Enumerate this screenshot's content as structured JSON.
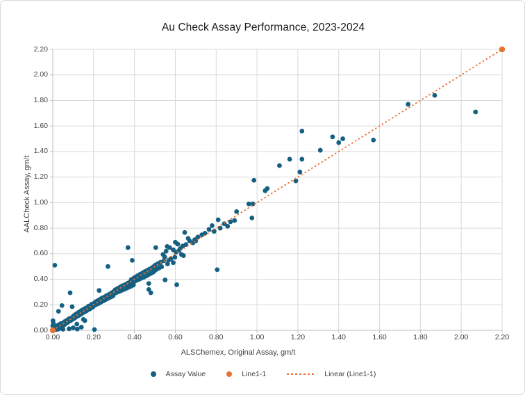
{
  "window": {
    "background": "#ffffff",
    "border_color": "#d9d9d9"
  },
  "chart_data": {
    "type": "scatter",
    "title": "Au Check Assay Performance, 2023-2024",
    "xlabel": "ALSChemex, Original Assay, gm/t",
    "ylabel": "AALCheck Assay, gm/t",
    "xlim": [
      0,
      2.2
    ],
    "ylim": [
      0,
      2.2
    ],
    "tick_step": 0.2,
    "grid": true,
    "gridline_color": "#d9d9d9",
    "axis_line_color": "#bfbfbf",
    "text_color": "#404040",
    "legend_position": "bottom-center",
    "x_ticks": [
      "0.00",
      "0.20",
      "0.40",
      "0.60",
      "0.80",
      "1.00",
      "1.20",
      "1.40",
      "1.60",
      "1.80",
      "2.00",
      "2.20"
    ],
    "y_ticks": [
      "0.00",
      "0.20",
      "0.40",
      "0.60",
      "0.80",
      "1.00",
      "1.20",
      "1.40",
      "1.60",
      "1.80",
      "2.00",
      "2.20"
    ],
    "series": [
      {
        "name": "Assay Value",
        "type": "scatter",
        "color": "#156082",
        "marker": "circle",
        "points": [
          [
            0.002,
            0.01
          ],
          [
            0.004,
            0.0
          ],
          [
            0.006,
            0.018
          ],
          [
            0.008,
            0.004
          ],
          [
            0.01,
            0.022
          ],
          [
            0.012,
            0.008
          ],
          [
            0.014,
            0.03
          ],
          [
            0.016,
            0.012
          ],
          [
            0.018,
            0.006
          ],
          [
            0.02,
            0.028
          ],
          [
            0.022,
            0.016
          ],
          [
            0.024,
            0.038
          ],
          [
            0.026,
            0.02
          ],
          [
            0.028,
            0.01
          ],
          [
            0.03,
            0.044
          ],
          [
            0.033,
            0.026
          ],
          [
            0.036,
            0.032
          ],
          [
            0.039,
            0.052
          ],
          [
            0.042,
            0.03
          ],
          [
            0.045,
            0.048
          ],
          [
            0.048,
            0.038
          ],
          [
            0.052,
            0.06
          ],
          [
            0.055,
            0.042
          ],
          [
            0.058,
            0.068
          ],
          [
            0.061,
            0.05
          ],
          [
            0.064,
            0.058
          ],
          [
            0.068,
            0.078
          ],
          [
            0.071,
            0.06
          ],
          [
            0.075,
            0.068
          ],
          [
            0.079,
            0.09
          ],
          [
            0.083,
            0.072
          ],
          [
            0.087,
            0.095
          ],
          [
            0.091,
            0.08
          ],
          [
            0.096,
            0.088
          ],
          [
            0.0,
            0.035
          ],
          [
            0.003,
            0.055
          ],
          [
            0.001,
            0.075
          ],
          [
            0.05,
            0.008
          ],
          [
            0.08,
            0.012
          ],
          [
            0.1,
            0.02
          ],
          [
            0.12,
            0.01
          ],
          [
            0.14,
            0.025
          ],
          [
            0.01,
            0.51
          ],
          [
            0.028,
            0.149
          ],
          [
            0.045,
            0.194
          ],
          [
            0.085,
            0.294
          ],
          [
            0.095,
            0.185
          ],
          [
            0.118,
            0.049
          ],
          [
            0.157,
            0.076
          ],
          [
            0.204,
            0.006
          ],
          [
            0.15,
            0.085
          ],
          [
            0.101,
            0.112
          ],
          [
            0.104,
            0.092
          ],
          [
            0.107,
            0.118
          ],
          [
            0.11,
            0.1
          ],
          [
            0.113,
            0.126
          ],
          [
            0.116,
            0.108
          ],
          [
            0.119,
            0.132
          ],
          [
            0.122,
            0.112
          ],
          [
            0.126,
            0.14
          ],
          [
            0.129,
            0.118
          ],
          [
            0.133,
            0.124
          ],
          [
            0.136,
            0.15
          ],
          [
            0.139,
            0.128
          ],
          [
            0.143,
            0.158
          ],
          [
            0.146,
            0.136
          ],
          [
            0.15,
            0.142
          ],
          [
            0.154,
            0.168
          ],
          [
            0.158,
            0.146
          ],
          [
            0.162,
            0.175
          ],
          [
            0.166,
            0.154
          ],
          [
            0.17,
            0.16
          ],
          [
            0.175,
            0.19
          ],
          [
            0.18,
            0.166
          ],
          [
            0.185,
            0.172
          ],
          [
            0.19,
            0.205
          ],
          [
            0.196,
            0.182
          ],
          [
            0.201,
            0.192
          ],
          [
            0.204,
            0.215
          ],
          [
            0.208,
            0.198
          ],
          [
            0.212,
            0.225
          ],
          [
            0.216,
            0.205
          ],
          [
            0.22,
            0.232
          ],
          [
            0.224,
            0.21
          ],
          [
            0.227,
            0.312
          ],
          [
            0.229,
            0.24
          ],
          [
            0.233,
            0.218
          ],
          [
            0.237,
            0.248
          ],
          [
            0.241,
            0.226
          ],
          [
            0.245,
            0.255
          ],
          [
            0.249,
            0.232
          ],
          [
            0.254,
            0.262
          ],
          [
            0.258,
            0.24
          ],
          [
            0.262,
            0.27
          ],
          [
            0.267,
            0.248
          ],
          [
            0.27,
            0.5
          ],
          [
            0.272,
            0.278
          ],
          [
            0.276,
            0.255
          ],
          [
            0.281,
            0.286
          ],
          [
            0.286,
            0.262
          ],
          [
            0.29,
            0.295
          ],
          [
            0.295,
            0.27
          ],
          [
            0.299,
            0.305
          ],
          [
            0.302,
            0.288
          ],
          [
            0.306,
            0.318
          ],
          [
            0.311,
            0.295
          ],
          [
            0.316,
            0.326
          ],
          [
            0.321,
            0.302
          ],
          [
            0.326,
            0.335
          ],
          [
            0.331,
            0.308
          ],
          [
            0.336,
            0.345
          ],
          [
            0.341,
            0.315
          ],
          [
            0.346,
            0.352
          ],
          [
            0.352,
            0.322
          ],
          [
            0.357,
            0.36
          ],
          [
            0.362,
            0.33
          ],
          [
            0.368,
            0.648
          ],
          [
            0.368,
            0.37
          ],
          [
            0.373,
            0.338
          ],
          [
            0.379,
            0.38
          ],
          [
            0.384,
            0.346
          ],
          [
            0.389,
            0.548
          ],
          [
            0.39,
            0.39
          ],
          [
            0.392,
            0.372
          ],
          [
            0.395,
            0.355
          ],
          [
            0.398,
            0.41
          ],
          [
            0.385,
            0.398
          ],
          [
            0.402,
            0.385
          ],
          [
            0.407,
            0.42
          ],
          [
            0.412,
            0.392
          ],
          [
            0.418,
            0.43
          ],
          [
            0.423,
            0.4
          ],
          [
            0.429,
            0.44
          ],
          [
            0.434,
            0.408
          ],
          [
            0.44,
            0.45
          ],
          [
            0.445,
            0.415
          ],
          [
            0.451,
            0.46
          ],
          [
            0.457,
            0.425
          ],
          [
            0.463,
            0.47
          ],
          [
            0.468,
            0.435
          ],
          [
            0.47,
            0.32
          ],
          [
            0.47,
            0.367
          ],
          [
            0.474,
            0.48
          ],
          [
            0.48,
            0.294
          ],
          [
            0.48,
            0.445
          ],
          [
            0.486,
            0.49
          ],
          [
            0.491,
            0.455
          ],
          [
            0.495,
            0.5
          ],
          [
            0.498,
            0.465
          ],
          [
            0.503,
            0.512
          ],
          [
            0.504,
            0.648
          ],
          [
            0.509,
            0.478
          ],
          [
            0.515,
            0.522
          ],
          [
            0.521,
            0.488
          ],
          [
            0.527,
            0.532
          ],
          [
            0.533,
            0.498
          ],
          [
            0.54,
            0.594
          ],
          [
            0.543,
            0.545
          ],
          [
            0.548,
            0.575
          ],
          [
            0.55,
            0.394
          ],
          [
            0.555,
            0.62
          ],
          [
            0.56,
            0.657
          ],
          [
            0.562,
            0.52
          ],
          [
            0.567,
            0.548
          ],
          [
            0.572,
            0.648
          ],
          [
            0.578,
            0.56
          ],
          [
            0.59,
            0.53
          ],
          [
            0.59,
            0.63
          ],
          [
            0.598,
            0.572
          ],
          [
            0.6,
            0.69
          ],
          [
            0.604,
            0.612
          ],
          [
            0.607,
            0.357
          ],
          [
            0.612,
            0.675
          ],
          [
            0.618,
            0.625
          ],
          [
            0.624,
            0.64
          ],
          [
            0.63,
            0.594
          ],
          [
            0.636,
            0.66
          ],
          [
            0.64,
            0.585
          ],
          [
            0.646,
            0.766
          ],
          [
            0.652,
            0.672
          ],
          [
            0.663,
            0.72
          ],
          [
            0.67,
            0.7
          ],
          [
            0.686,
            0.685
          ],
          [
            0.695,
            0.71
          ],
          [
            0.7,
            0.7
          ],
          [
            0.71,
            0.73
          ],
          [
            0.73,
            0.748
          ],
          [
            0.745,
            0.76
          ],
          [
            0.765,
            0.79
          ],
          [
            0.78,
            0.82
          ],
          [
            0.79,
            0.775
          ],
          [
            0.805,
            0.475
          ],
          [
            0.81,
            0.866
          ],
          [
            0.82,
            0.8
          ],
          [
            0.84,
            0.835
          ],
          [
            0.856,
            0.815
          ],
          [
            0.87,
            0.85
          ],
          [
            0.89,
            0.86
          ],
          [
            0.9,
            0.93
          ],
          [
            0.96,
            0.99
          ],
          [
            0.975,
            0.88
          ],
          [
            0.98,
            0.99
          ],
          [
            0.985,
            1.175
          ],
          [
            1.04,
            1.093
          ],
          [
            1.05,
            1.11
          ],
          [
            1.11,
            1.29
          ],
          [
            1.16,
            1.34
          ],
          [
            1.19,
            1.17
          ],
          [
            1.21,
            1.24
          ],
          [
            1.22,
            1.34
          ],
          [
            1.22,
            1.56
          ],
          [
            1.31,
            1.41
          ],
          [
            1.37,
            1.515
          ],
          [
            1.4,
            1.47
          ],
          [
            1.42,
            1.5
          ],
          [
            1.57,
            1.49
          ],
          [
            1.74,
            1.77
          ],
          [
            1.87,
            1.84
          ],
          [
            2.07,
            1.71
          ]
        ]
      },
      {
        "name": "Line1-1",
        "type": "scatter",
        "color": "#e97132",
        "marker": "circle",
        "points": [
          [
            0,
            0
          ],
          [
            2.2,
            2.2
          ]
        ]
      },
      {
        "name": "Linear (Line1-1)",
        "type": "trendline",
        "color": "#e97132",
        "style": "dotted",
        "points": [
          [
            0,
            0
          ],
          [
            2.2,
            2.2
          ]
        ]
      }
    ]
  }
}
